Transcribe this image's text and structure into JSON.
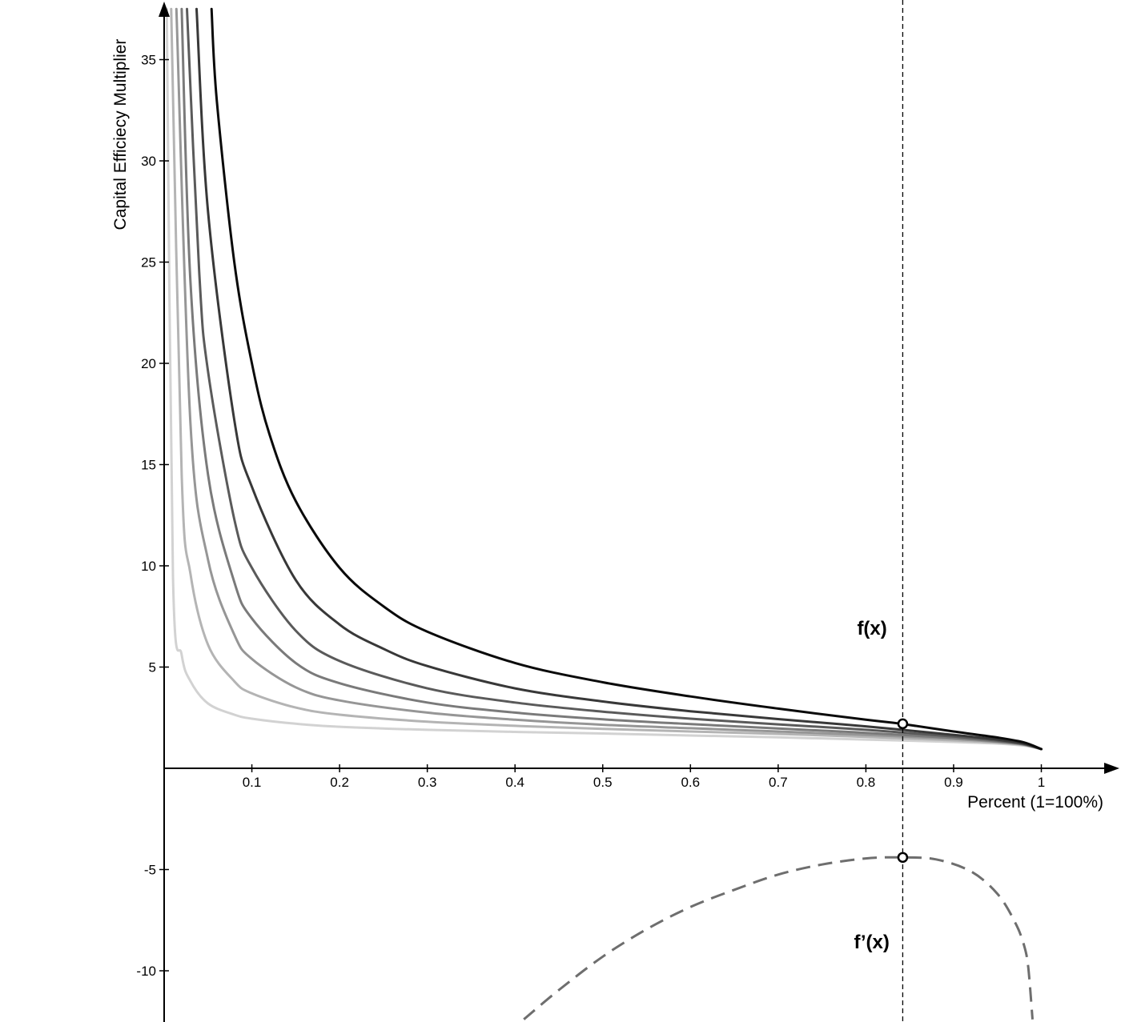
{
  "chart_data": {
    "type": "line",
    "title": "",
    "xlabel": "Percent (1=100%)",
    "ylabel": "Capital Efficiecy Multiplier",
    "xlim": [
      0,
      1.09
    ],
    "ylim": [
      -12.4,
      37.7
    ],
    "grid": false,
    "x_ticks": [
      0.1,
      0.2,
      0.3,
      0.4,
      0.5,
      0.6,
      0.7,
      0.8,
      0.9,
      1
    ],
    "x_tick_labels": [
      "0.1",
      "0.2",
      "0.3",
      "0.4",
      "0.5",
      "0.6",
      "0.7",
      "0.8",
      "0.9",
      "1"
    ],
    "y_ticks": [
      -10,
      -5,
      5,
      10,
      15,
      20,
      25,
      30,
      35
    ],
    "y_tick_labels": [
      "-10",
      "-5",
      "5",
      "10",
      "15",
      "20",
      "25",
      "30",
      "35"
    ],
    "series": [
      {
        "color": "#d2d2d2",
        "x": [
          0.003,
          0.01,
          0.02,
          0.03,
          0.05,
          0.08,
          0.1,
          0.15,
          0.2,
          0.3,
          0.4,
          0.5,
          0.6,
          0.7,
          0.8,
          0.9,
          0.95,
          0.98,
          1.0
        ],
        "y": [
          37.5,
          9.5,
          5.6,
          4.3,
          3.2,
          2.65,
          2.45,
          2.2,
          2.05,
          1.9,
          1.8,
          1.72,
          1.62,
          1.53,
          1.42,
          1.3,
          1.22,
          1.12,
          0.95
        ]
      },
      {
        "color": "#b4b4b4",
        "x": [
          0.008,
          0.02,
          0.03,
          0.05,
          0.08,
          0.1,
          0.15,
          0.2,
          0.3,
          0.4,
          0.5,
          0.6,
          0.7,
          0.8,
          0.9,
          0.95,
          0.98,
          1.0
        ],
        "y": [
          37.5,
          14.5,
          9.6,
          6.1,
          4.3,
          3.7,
          3.0,
          2.65,
          2.3,
          2.1,
          1.95,
          1.82,
          1.7,
          1.55,
          1.38,
          1.27,
          1.15,
          0.95
        ]
      },
      {
        "color": "#969696",
        "x": [
          0.014,
          0.03,
          0.05,
          0.08,
          0.1,
          0.15,
          0.2,
          0.3,
          0.4,
          0.5,
          0.6,
          0.7,
          0.8,
          0.9,
          0.95,
          0.98,
          1.0
        ],
        "y": [
          37.5,
          17.0,
          10.3,
          6.6,
          5.4,
          4.0,
          3.35,
          2.75,
          2.4,
          2.15,
          1.98,
          1.82,
          1.65,
          1.45,
          1.3,
          1.17,
          0.95
        ]
      },
      {
        "color": "#7a7a7a",
        "x": [
          0.02,
          0.03,
          0.05,
          0.08,
          0.1,
          0.15,
          0.2,
          0.3,
          0.4,
          0.5,
          0.6,
          0.7,
          0.8,
          0.9,
          0.95,
          0.98,
          1.0
        ],
        "y": [
          37.5,
          24.0,
          14.5,
          9.2,
          7.4,
          5.2,
          4.2,
          3.25,
          2.75,
          2.42,
          2.18,
          1.97,
          1.75,
          1.5,
          1.33,
          1.18,
          0.95
        ]
      },
      {
        "color": "#5a5a5a",
        "x": [
          0.026,
          0.04,
          0.05,
          0.08,
          0.1,
          0.15,
          0.2,
          0.3,
          0.4,
          0.5,
          0.6,
          0.7,
          0.8,
          0.9,
          0.95,
          0.98,
          1.0
        ],
        "y": [
          37.5,
          24.5,
          19.6,
          12.3,
          9.9,
          6.8,
          5.3,
          3.95,
          3.25,
          2.8,
          2.45,
          2.17,
          1.9,
          1.57,
          1.37,
          1.2,
          0.95
        ]
      },
      {
        "color": "#383838",
        "x": [
          0.037,
          0.05,
          0.08,
          0.1,
          0.15,
          0.2,
          0.25,
          0.3,
          0.4,
          0.5,
          0.6,
          0.7,
          0.8,
          0.9,
          0.95,
          0.98,
          1.0
        ],
        "y": [
          37.5,
          27.5,
          17.2,
          13.9,
          9.3,
          7.1,
          5.9,
          5.05,
          3.95,
          3.3,
          2.82,
          2.43,
          2.07,
          1.65,
          1.42,
          1.22,
          0.95
        ]
      },
      {
        "color": "#0a0a0a",
        "x": [
          0.054,
          0.06,
          0.08,
          0.1,
          0.12,
          0.15,
          0.2,
          0.25,
          0.3,
          0.4,
          0.5,
          0.6,
          0.7,
          0.8,
          0.84,
          0.9,
          0.95,
          0.98,
          1.0
        ],
        "y": [
          37.5,
          33.0,
          25.0,
          20.0,
          16.5,
          13.2,
          9.9,
          8.0,
          6.75,
          5.2,
          4.25,
          3.55,
          2.95,
          2.4,
          2.2,
          1.82,
          1.52,
          1.28,
          0.95
        ]
      }
    ],
    "derivative_series": {
      "name": "f'(x)",
      "color": "#6e6e6e",
      "style": "dashed",
      "x": [
        0.41,
        0.45,
        0.5,
        0.55,
        0.6,
        0.65,
        0.7,
        0.75,
        0.8,
        0.84,
        0.88,
        0.92,
        0.95,
        0.97,
        0.98,
        0.985,
        0.99
      ],
      "y": [
        -12.4,
        -10.95,
        -9.3,
        -7.95,
        -6.85,
        -6.0,
        -5.25,
        -4.75,
        -4.45,
        -4.4,
        -4.5,
        -5.1,
        -6.2,
        -7.6,
        -8.7,
        -9.8,
        -12.4
      ]
    },
    "vertical_line": {
      "x": 0.842,
      "style": "dashed"
    },
    "highlight_points": [
      {
        "x": 0.842,
        "y": 2.2
      },
      {
        "x": 0.842,
        "y": -4.4
      }
    ],
    "annotations": [
      {
        "text": "f(x)",
        "x": 0.79,
        "y": 6.6
      },
      {
        "text": "f’(x)",
        "x": 0.79,
        "y": -8.9
      }
    ]
  }
}
